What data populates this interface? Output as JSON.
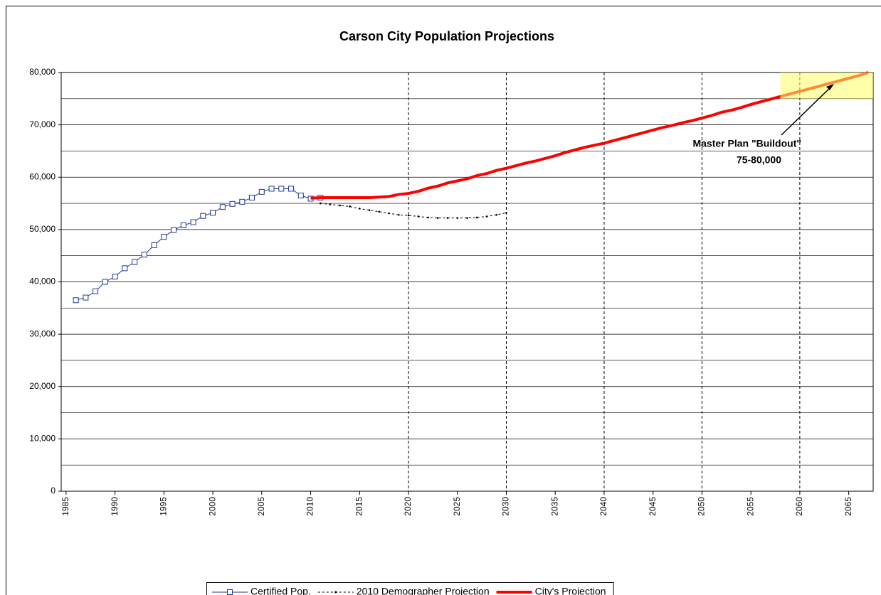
{
  "chart_data": {
    "type": "line",
    "title": "Carson City Population Projections",
    "xlim": [
      1984.5,
      2067.5
    ],
    "xticks": [
      1985,
      1990,
      1995,
      2000,
      2005,
      2010,
      2015,
      2020,
      2025,
      2030,
      2035,
      2040,
      2045,
      2050,
      2055,
      2060,
      2065
    ],
    "ylim": [
      0,
      80000
    ],
    "yticks": [
      0,
      {
        "value": 10000,
        "label": "10,000"
      },
      {
        "value": 20000,
        "label": "20,000"
      },
      {
        "value": 30000,
        "label": "30,000"
      },
      {
        "value": 40000,
        "label": "40,000"
      },
      {
        "value": 50000,
        "label": "50,000"
      },
      {
        "value": 60000,
        "label": "60,000"
      },
      {
        "value": 70000,
        "label": "70,000"
      },
      {
        "value": 80000,
        "label": "80,000"
      }
    ],
    "y_minor_grid": [
      5000,
      15000,
      25000,
      35000,
      45000,
      55000,
      65000,
      75000
    ],
    "grid": true,
    "vertical_lines": [
      2020,
      2030,
      2040,
      2050,
      2060
    ],
    "legend": "bottom",
    "highlight": {
      "x_start": 2058,
      "ylim": [
        75000,
        80000
      ],
      "color": "#ffff66"
    },
    "annotation": [
      "Master Plan \"Buildout\"",
      "75-80,000"
    ],
    "series": [
      {
        "name": "Certified Pop.",
        "color": "#1f3a93",
        "style": "solid-square",
        "x": [
          1986,
          1987,
          1988,
          1989,
          1990,
          1991,
          1992,
          1993,
          1994,
          1995,
          1996,
          1997,
          1998,
          1999,
          2000,
          2001,
          2002,
          2003,
          2004,
          2005,
          2006,
          2007,
          2008,
          2009,
          2010,
          2011
        ],
        "values": [
          36500,
          37000,
          38200,
          40000,
          41000,
          42600,
          43800,
          45200,
          47000,
          48600,
          49900,
          50800,
          51400,
          52600,
          53200,
          54300,
          54900,
          55300,
          56100,
          57200,
          57800,
          57800,
          57800,
          56500,
          55900,
          56100
        ]
      },
      {
        "name": "2010 Demographer Projection",
        "color": "#000000",
        "style": "dashed-dot",
        "x": [
          2011,
          2012,
          2013,
          2014,
          2015,
          2016,
          2017,
          2018,
          2019,
          2020,
          2021,
          2022,
          2023,
          2024,
          2025,
          2026,
          2027,
          2028,
          2029,
          2030
        ],
        "values": [
          55000,
          54800,
          54600,
          54400,
          54000,
          53700,
          53400,
          53100,
          52800,
          52700,
          52500,
          52300,
          52200,
          52200,
          52200,
          52200,
          52300,
          52500,
          52800,
          53200
        ]
      },
      {
        "name": "City's Projection",
        "color": "#ff0000",
        "style": "thick",
        "x": [
          2010,
          2011,
          2012,
          2013,
          2014,
          2015,
          2016,
          2017,
          2018,
          2019,
          2020,
          2021,
          2022,
          2023,
          2024,
          2025,
          2026,
          2027,
          2028,
          2029,
          2030,
          2031,
          2032,
          2033,
          2034,
          2035,
          2036,
          2037,
          2038,
          2039,
          2040,
          2041,
          2042,
          2043,
          2044,
          2045,
          2046,
          2047,
          2048,
          2049,
          2050,
          2051,
          2052,
          2053,
          2054,
          2055,
          2056,
          2057,
          2058,
          2059,
          2060,
          2061,
          2062,
          2063,
          2064,
          2065,
          2066,
          2067
        ],
        "values": [
          56000,
          56100,
          56100,
          56100,
          56100,
          56100,
          56100,
          56200,
          56300,
          56700,
          56900,
          57300,
          57900,
          58300,
          58900,
          59300,
          59700,
          60300,
          60700,
          61300,
          61700,
          62200,
          62700,
          63100,
          63600,
          64100,
          64700,
          65200,
          65700,
          66100,
          66500,
          67000,
          67500,
          68000,
          68500,
          69000,
          69500,
          69900,
          70400,
          70800,
          71300,
          71800,
          72400,
          72800,
          73300,
          73900,
          74400,
          74900,
          75400,
          75900,
          76400,
          76900,
          77400,
          77900,
          78400,
          78900,
          79400,
          80000
        ]
      }
    ]
  }
}
